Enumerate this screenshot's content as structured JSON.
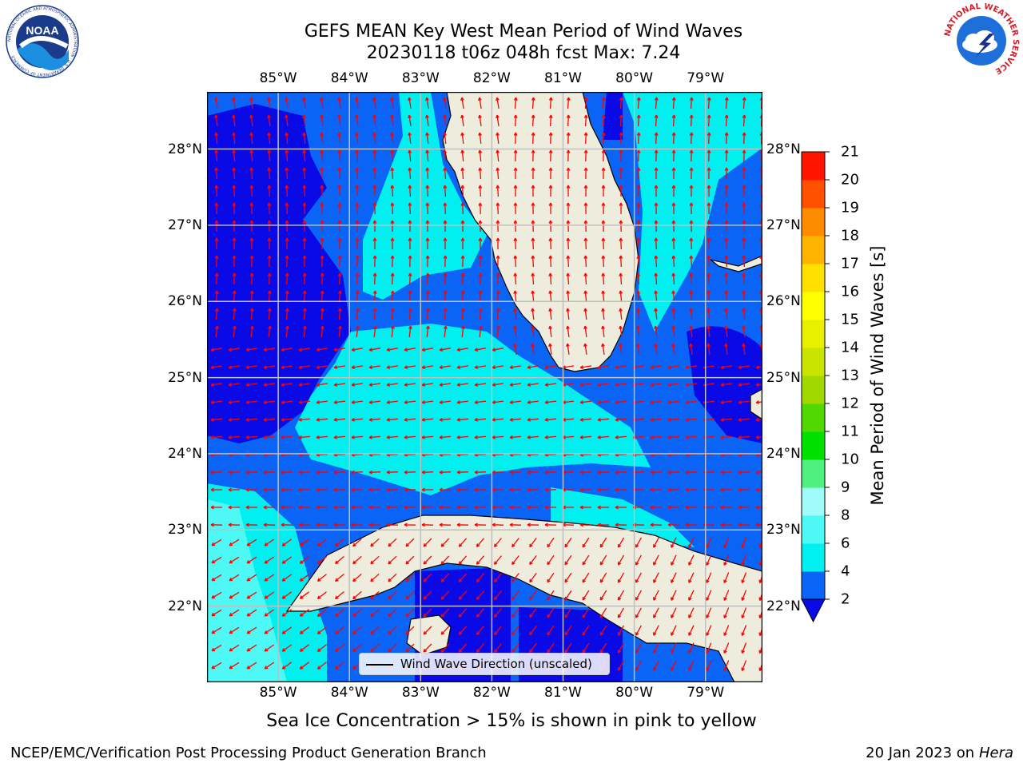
{
  "header": {
    "title_line1": "GEFS MEAN Key West Mean Period of Wind Waves",
    "title_line2": "20230118 t06z 048h fcst   Max: 7.24"
  },
  "logos": {
    "noaa": {
      "text": "NOAA",
      "ring_text": "NATIONAL OCEANIC AND ATMOSPHERIC ADMINISTRATION · U.S. DEPARTMENT OF COMMERCE"
    },
    "nws": {
      "ring_text": "NATIONAL WEATHER SERVICE"
    }
  },
  "map": {
    "lon_labels": [
      "85°W",
      "84°W",
      "83°W",
      "82°W",
      "81°W",
      "80°W",
      "79°W"
    ],
    "lat_labels": [
      "28°N",
      "27°N",
      "26°N",
      "25°N",
      "24°N",
      "23°N",
      "22°N"
    ],
    "extent": {
      "lon_min": -86.0,
      "lon_max": -78.2,
      "lat_min": 21.0,
      "lat_max": 28.75
    },
    "colors": {
      "land": "#eeeddd",
      "band_2_4": "#0a0ae6",
      "band_4_6": "#0a64f6",
      "band_6_8": "#00f0f0",
      "band_8_9": "#4ef8f4",
      "arrow": "#ff0000",
      "grid": "#bfbfbf"
    }
  },
  "legend": {
    "label": "Wind Wave Direction (unscaled)"
  },
  "colorbar": {
    "label": "Mean Period of Wind Waves [s]",
    "ticks": [
      "21",
      "20",
      "19",
      "18",
      "17",
      "16",
      "15",
      "14",
      "13",
      "12",
      "11",
      "10",
      "9",
      "8",
      "6",
      "4",
      "2"
    ],
    "levels": [
      2,
      4,
      6,
      8,
      9,
      10,
      11,
      12,
      13,
      14,
      15,
      16,
      17,
      18,
      19,
      20,
      21
    ],
    "colors": [
      "#0a64f6",
      "#00f0f0",
      "#4ef8f4",
      "#a0fcf8",
      "#50f080",
      "#00e000",
      "#50d800",
      "#a0d800",
      "#c8e400",
      "#e8f000",
      "#ffff00",
      "#ffe000",
      "#ffb400",
      "#ff8c00",
      "#ff5000",
      "#ff1400"
    ],
    "under_color": "#0a0ae6"
  },
  "footer": {
    "note": "Sea Ice Concentration > 15% is shown in pink to yellow",
    "left": "NCEP/EMC/Verification Post Processing Product Generation Branch",
    "date": "20 Jan 2023 on ",
    "host": "Hera"
  }
}
